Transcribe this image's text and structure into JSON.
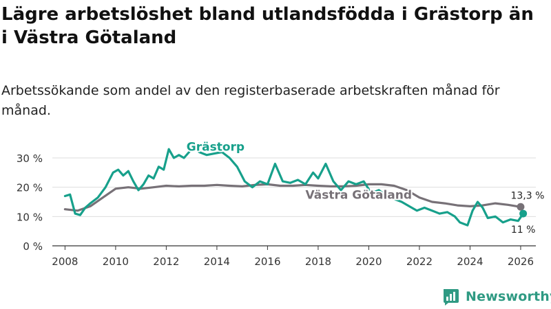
{
  "title": "Lägre arbetslöshet bland utlandsfödda i Grästorp än i Västra Götaland",
  "subtitle": "Arbetssökande som andel av den registerbaserade arbetskraften månad för månad.",
  "brand": {
    "name": "Newsworthy"
  },
  "colors": {
    "grastorp": "#17a08b",
    "vg": "#777177",
    "grid": "#dddddd",
    "axis": "#333333"
  },
  "chart_data": {
    "type": "line",
    "title": "Lägre arbetslöshet bland utlandsfödda i Grästorp än i Västra Götaland",
    "xlabel": "",
    "ylabel": "",
    "xlim": [
      2007.5,
      2026.6
    ],
    "ylim": [
      0,
      30
    ],
    "yticks": [
      0,
      10,
      20,
      30
    ],
    "ytick_labels": [
      "0 %",
      "10 %",
      "20 %",
      "30 %"
    ],
    "xticks": [
      2008,
      2010,
      2012,
      2014,
      2016,
      2018,
      2020,
      2022,
      2024,
      2026
    ],
    "xtick_labels": [
      "2008",
      "2010",
      "2012",
      "2014",
      "2016",
      "2018",
      "2020",
      "2022",
      "2024",
      "2026"
    ],
    "grid": true,
    "series": [
      {
        "name": "Västra Götaland",
        "label": "Västra Götaland",
        "color": "#777177",
        "end_label": "13,3 %",
        "x": [
          2008.0,
          2008.5,
          2009.0,
          2009.5,
          2010.0,
          2010.5,
          2011.0,
          2011.5,
          2012.0,
          2012.5,
          2013.0,
          2013.5,
          2014.0,
          2014.5,
          2015.0,
          2015.5,
          2016.0,
          2016.5,
          2017.0,
          2017.5,
          2018.0,
          2018.5,
          2019.0,
          2019.5,
          2020.0,
          2020.5,
          2021.0,
          2021.5,
          2022.0,
          2022.5,
          2023.0,
          2023.5,
          2024.0,
          2024.5,
          2025.0,
          2025.5,
          2026.0
        ],
        "values": [
          12.5,
          12.0,
          13.5,
          16.5,
          19.5,
          20.0,
          19.5,
          20.0,
          20.5,
          20.3,
          20.5,
          20.5,
          20.8,
          20.5,
          20.3,
          20.8,
          21.0,
          20.5,
          20.5,
          20.8,
          20.5,
          20.3,
          20.3,
          20.5,
          21.0,
          21.0,
          20.5,
          19.0,
          16.5,
          15.0,
          14.5,
          13.8,
          13.5,
          13.8,
          14.5,
          14.0,
          13.3
        ]
      },
      {
        "name": "Grästorp",
        "label": "Grästorp",
        "color": "#17a08b",
        "end_label": "11 %",
        "x": [
          2008.0,
          2008.2,
          2008.4,
          2008.6,
          2008.8,
          2009.0,
          2009.3,
          2009.6,
          2009.9,
          2010.1,
          2010.3,
          2010.5,
          2010.7,
          2010.9,
          2011.1,
          2011.3,
          2011.5,
          2011.7,
          2011.9,
          2012.1,
          2012.3,
          2012.5,
          2012.7,
          2012.9,
          2013.1,
          2013.3,
          2013.6,
          2013.9,
          2014.2,
          2014.5,
          2014.8,
          2015.1,
          2015.4,
          2015.7,
          2016.0,
          2016.3,
          2016.6,
          2016.9,
          2017.2,
          2017.5,
          2017.8,
          2018.0,
          2018.3,
          2018.6,
          2018.9,
          2019.2,
          2019.5,
          2019.8,
          2020.1,
          2020.4,
          2020.7,
          2021.0,
          2021.3,
          2021.6,
          2021.9,
          2022.2,
          2022.5,
          2022.8,
          2023.1,
          2023.4,
          2023.6,
          2023.9,
          2024.1,
          2024.3,
          2024.5,
          2024.7,
          2025.0,
          2025.3,
          2025.6,
          2025.9,
          2026.1
        ],
        "values": [
          17.0,
          17.5,
          11.0,
          10.5,
          13.0,
          14.5,
          16.5,
          20.0,
          25.0,
          26.0,
          24.0,
          25.5,
          22.0,
          19.0,
          21.0,
          24.0,
          23.0,
          27.0,
          26.0,
          33.0,
          30.0,
          31.0,
          30.0,
          32.0,
          34.0,
          32.0,
          31.0,
          31.5,
          32.0,
          30.0,
          27.0,
          22.0,
          20.0,
          22.0,
          21.0,
          28.0,
          22.0,
          21.5,
          22.5,
          21.0,
          25.0,
          23.0,
          28.0,
          22.0,
          19.0,
          22.0,
          21.0,
          22.0,
          18.0,
          19.0,
          17.0,
          16.0,
          15.0,
          13.5,
          12.0,
          13.0,
          12.0,
          11.0,
          11.5,
          10.0,
          8.0,
          7.0,
          12.0,
          15.0,
          13.0,
          9.5,
          10.0,
          8.0,
          9.0,
          8.5,
          11.0
        ]
      }
    ]
  }
}
